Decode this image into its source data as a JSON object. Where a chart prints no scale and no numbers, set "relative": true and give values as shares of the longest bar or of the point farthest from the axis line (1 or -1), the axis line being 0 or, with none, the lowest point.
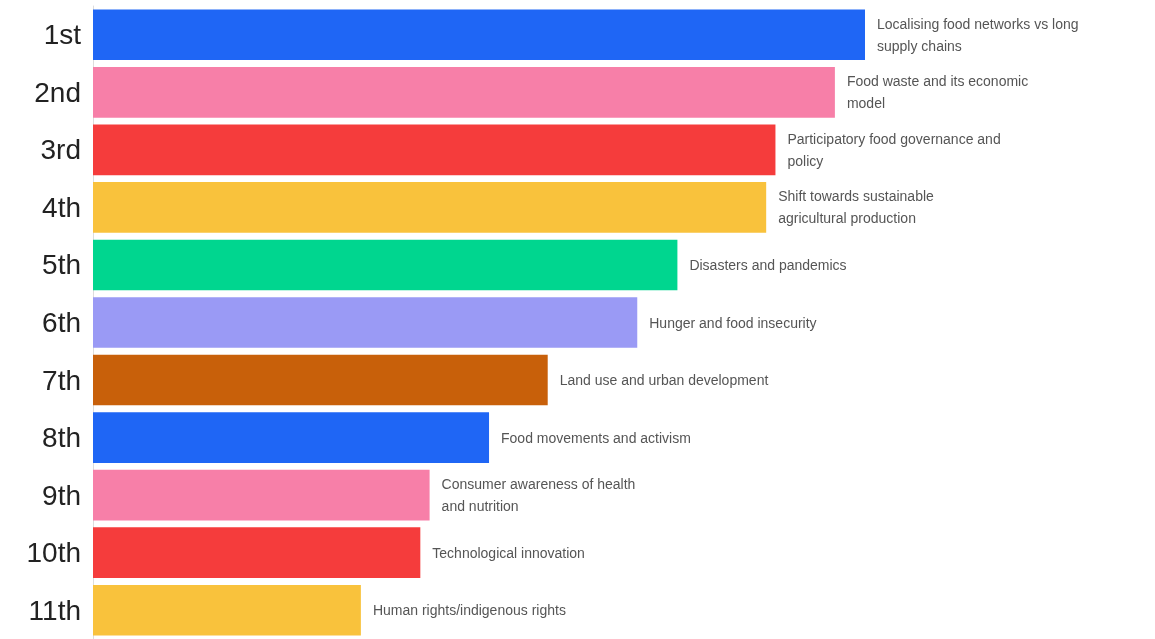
{
  "chart_data": {
    "type": "bar",
    "orientation": "horizontal",
    "relative": true,
    "categories": [
      "1st",
      "2nd",
      "3rd",
      "4th",
      "5th",
      "6th",
      "7th",
      "8th",
      "9th",
      "10th",
      "11th"
    ],
    "values": [
      1,
      0.961,
      0.884,
      0.872,
      0.757,
      0.705,
      0.589,
      0.513,
      0.436,
      0.424,
      0.347
    ],
    "colors": [
      "#1f66f5",
      "#f77fa8",
      "#f53c3c",
      "#f9c23c",
      "#00d68f",
      "#9a9af5",
      "#c8600a",
      "#1f66f5",
      "#f77fa8",
      "#f53c3c",
      "#f9c23c"
    ],
    "annotations": [
      "Localising food networks vs long supply chains",
      "Food waste and its economic model",
      "Participatory food governance and policy",
      "Shift towards sustainable agricultural production",
      "Disasters and pandemics",
      "Hunger and food insecurity",
      "Land use and urban development",
      "Food movements and activism",
      "Consumer awareness of health and nutrition",
      "Technological innovation",
      "Human rights/indigenous rights"
    ]
  }
}
